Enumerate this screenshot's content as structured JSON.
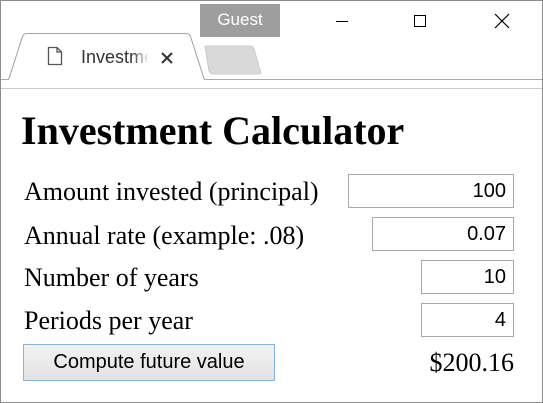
{
  "browser": {
    "profile_badge": "Guest",
    "tab_title": "Investment Calculator",
    "icons": {
      "page": "page-icon",
      "tab_close": "close-icon",
      "minimize": "minimize-icon",
      "maximize": "maximize-icon",
      "close": "close-icon"
    }
  },
  "page": {
    "title": "Investment Calculator",
    "fields": [
      {
        "label": "Amount invested (principal)",
        "value": "100"
      },
      {
        "label": "Annual rate (example: .08)",
        "value": "0.07"
      },
      {
        "label": "Number of years",
        "value": "10"
      },
      {
        "label": "Periods per year",
        "value": "4"
      }
    ],
    "compute_button": "Compute future value",
    "result": "$200.16"
  },
  "colors": {
    "button_border": "#7eb4ea",
    "field_border": "#a9a9a9",
    "badge_background": "#9e9e9e"
  }
}
